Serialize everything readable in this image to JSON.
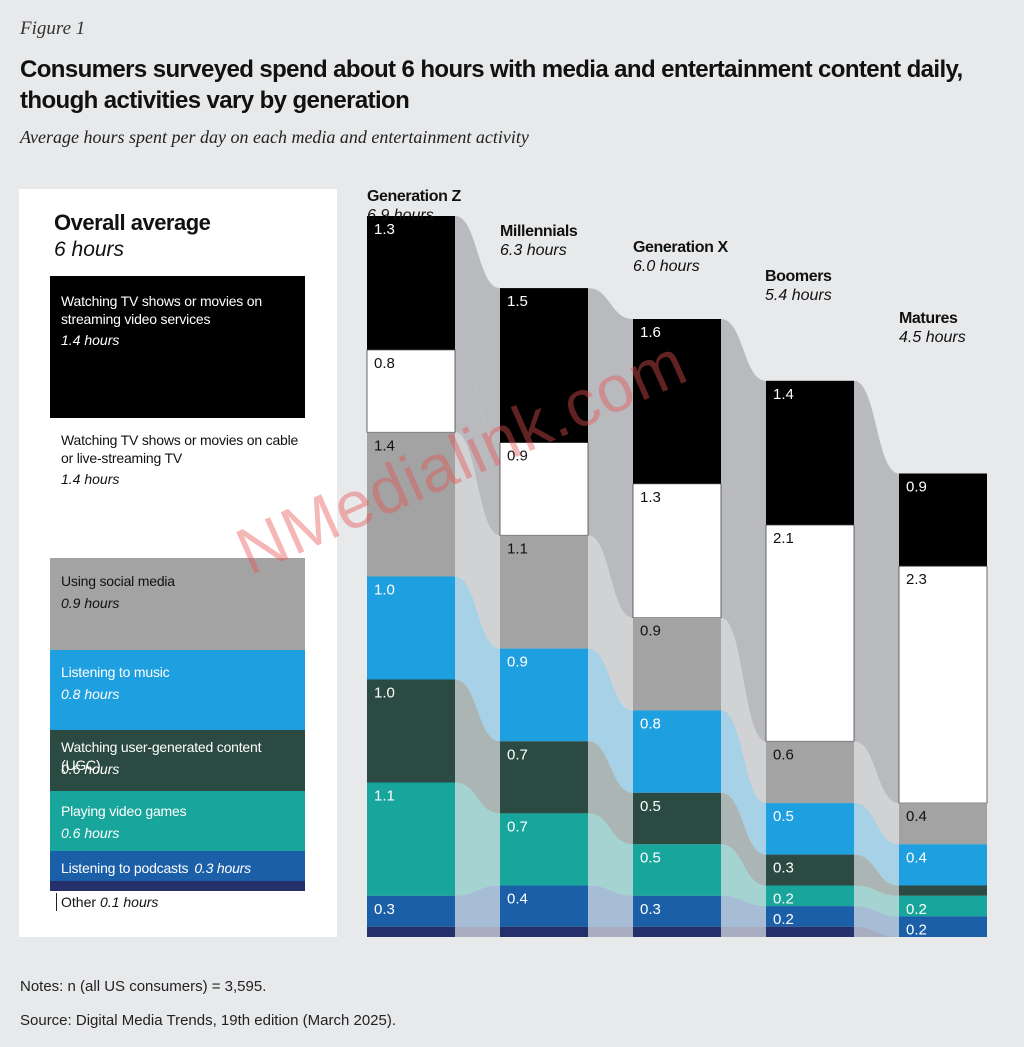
{
  "figure_label": "Figure 1",
  "title": "Consumers surveyed spend about 6 hours with media and entertainment content daily, though activities vary by generation",
  "subtitle": "Average hours spent per day on each media and entertainment activity",
  "watermark": "NMedialink.com",
  "notes": "Notes: n (all US consumers) = 3,595.",
  "source": "Source: Digital Media Trends, 19th edition (March 2025).",
  "colors": {
    "streaming": "#000000",
    "cable": "#ffffff",
    "social": "#a3a3a3",
    "music": "#1e9fdf",
    "ugc": "#2b4a42",
    "games": "#18a59b",
    "podcasts": "#1b5fa8",
    "other": "#23306a",
    "flow": "#b9babd",
    "background": "#e8e9eb"
  },
  "overall": {
    "title": "Overall average",
    "hours": "6 hours",
    "segments": [
      {
        "key": "streaming",
        "name": "Watching TV shows or movies on streaming video services",
        "hours": "1.4 hours"
      },
      {
        "key": "cable",
        "name": "Watching TV shows or movies on cable or live-streaming TV",
        "hours": "1.4 hours"
      },
      {
        "key": "social",
        "name": "Using social media",
        "hours": "0.9 hours"
      },
      {
        "key": "music",
        "name": "Listening to music",
        "hours": "0.8 hours"
      },
      {
        "key": "ugc",
        "name": "Watching user-generated content (UGC)",
        "hours": "0.6 hours"
      },
      {
        "key": "games",
        "name": "Playing video games",
        "hours": "0.6 hours"
      },
      {
        "key": "podcasts",
        "name": "Listening to podcasts",
        "hours": "0.3 hours"
      },
      {
        "key": "other",
        "name": "Other",
        "hours": "0.1 hours"
      }
    ]
  },
  "chart_data": {
    "type": "bar",
    "title": "Consumers surveyed spend about 6 hours with media and entertainment content daily, though activities vary by generation",
    "subtitle": "Average hours spent per day on each media and entertainment activity",
    "unit": "hours per day",
    "stacked": true,
    "categories": [
      "Generation Z",
      "Millennials",
      "Generation X",
      "Boomers",
      "Matures"
    ],
    "totals_label": [
      "6.9 hours",
      "6.3 hours",
      "6.0 hours",
      "5.4 hours",
      "4.5 hours"
    ],
    "series": [
      {
        "key": "streaming",
        "name": "Watching TV shows or movies on streaming video services",
        "values": [
          1.3,
          1.5,
          1.6,
          1.4,
          0.9
        ]
      },
      {
        "key": "cable",
        "name": "Watching TV shows or movies on cable or live-streaming TV",
        "values": [
          0.8,
          0.9,
          1.3,
          2.1,
          2.3
        ]
      },
      {
        "key": "social",
        "name": "Using social media",
        "values": [
          1.4,
          1.1,
          0.9,
          0.6,
          0.4
        ]
      },
      {
        "key": "music",
        "name": "Listening to music",
        "values": [
          1.0,
          0.9,
          0.8,
          0.5,
          0.4
        ]
      },
      {
        "key": "ugc",
        "name": "Watching user-generated content (UGC)",
        "values": [
          1.0,
          0.7,
          0.5,
          0.3,
          0.1
        ]
      },
      {
        "key": "games",
        "name": "Playing video games",
        "values": [
          1.1,
          0.7,
          0.5,
          0.2,
          0.2
        ]
      },
      {
        "key": "podcasts",
        "name": "Listening to podcasts",
        "values": [
          0.3,
          0.4,
          0.3,
          0.2,
          0.2
        ]
      },
      {
        "key": "other",
        "name": "Other",
        "values": [
          0.1,
          0.1,
          0.1,
          0.1,
          0.0
        ]
      }
    ],
    "visible_labels": [
      [
        "1.3",
        "0.8",
        "1.4",
        "1.0",
        "1.0",
        "1.1",
        "0.3",
        ""
      ],
      [
        "1.5",
        "0.9",
        "1.1",
        "0.9",
        "0.7",
        "0.7",
        "0.4",
        ""
      ],
      [
        "1.6",
        "1.3",
        "0.9",
        "0.8",
        "0.5",
        "0.5",
        "0.3",
        ""
      ],
      [
        "1.4",
        "2.1",
        "0.6",
        "0.5",
        "0.3",
        "0.2",
        "0.2",
        ""
      ],
      [
        "0.9",
        "2.3",
        "0.4",
        "0.4",
        "",
        "0.2",
        "0.2",
        ""
      ]
    ]
  }
}
